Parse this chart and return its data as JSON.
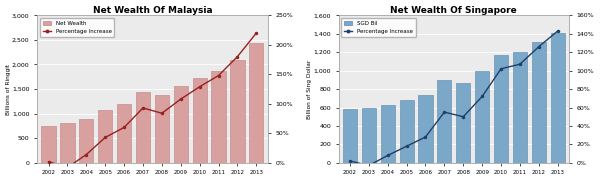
{
  "malaysia": {
    "title": "Net Wealth Of Malaysia",
    "ylabel_left": "Billions of Ringgit",
    "years": [
      2002,
      2003,
      2004,
      2005,
      2006,
      2007,
      2008,
      2009,
      2010,
      2011,
      2012,
      2013
    ],
    "net_wealth": [
      750,
      800,
      900,
      1075,
      1200,
      1450,
      1380,
      1560,
      1720,
      1870,
      2100,
      2430
    ],
    "pct_increase": [
      2,
      -8,
      14,
      43,
      60,
      93,
      84,
      108,
      129,
      148,
      180,
      220
    ],
    "bar_color": "#D9A0A0",
    "bar_edge": "#C08080",
    "line_color": "#9B2020",
    "ylim_left": [
      0,
      3000
    ],
    "ylim_right": [
      0,
      250
    ],
    "yticks_left": [
      0,
      500,
      1000,
      1500,
      2000,
      2500,
      3000
    ],
    "yticks_right": [
      0,
      50,
      100,
      150,
      200,
      250
    ],
    "legend_labels": [
      "Net Wealth",
      "Percentage Increase"
    ]
  },
  "singapore": {
    "title": "Net Wealth Of Singapore",
    "ylabel_left": "Billion of Sing Dollar",
    "years": [
      2002,
      2003,
      2004,
      2005,
      2006,
      2007,
      2008,
      2009,
      2010,
      2011,
      2012,
      2013
    ],
    "net_wealth": [
      580,
      600,
      630,
      680,
      740,
      900,
      870,
      1000,
      1170,
      1200,
      1310,
      1410
    ],
    "pct_increase": [
      2,
      -3,
      8,
      18,
      28,
      55,
      50,
      72,
      102,
      107,
      126,
      143
    ],
    "bar_color": "#7BA7C9",
    "bar_edge": "#5A88AA",
    "line_color": "#1F3F6B",
    "ylim_left": [
      0,
      1600
    ],
    "ylim_right": [
      0,
      160
    ],
    "yticks_left": [
      0,
      200,
      400,
      600,
      800,
      1000,
      1200,
      1400,
      1600
    ],
    "yticks_right": [
      0,
      20,
      40,
      60,
      80,
      100,
      120,
      140,
      160
    ],
    "legend_labels": [
      "SGD Bil",
      "Percentage Increase"
    ]
  },
  "plot_bg": "#EBEBEB",
  "fig_bg": "#FFFFFF"
}
